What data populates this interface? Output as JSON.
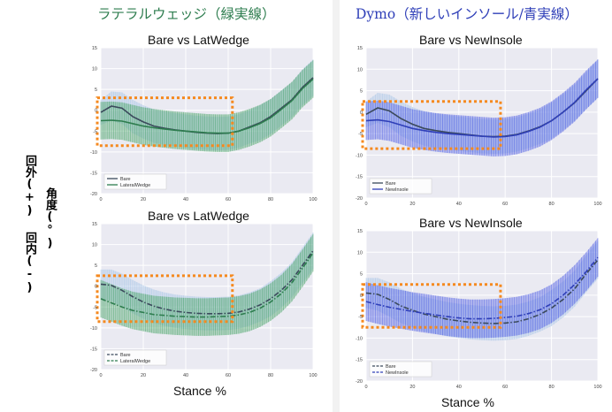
{
  "colors": {
    "green": "#2e7d4f",
    "blue": "#2f3fb8",
    "bare": "#3b4a5c",
    "box": "#f5891f",
    "green_band": "#4aa66a",
    "blue_band": "#4f5ee6",
    "bare_band": "#a9c6e8"
  },
  "left_title": "ラテラルウェッジ（緑実線）",
  "right_title": "Dymo（新しいインソール/青実線）",
  "y_axis_labels": {
    "outward": "回外(+)",
    "angle": "角度(°)",
    "inward": "回内(-)"
  },
  "stance_label": "Stance %",
  "chart_data": [
    {
      "type": "line",
      "title": "Bare vs LatWedge",
      "xlim": [
        0,
        100
      ],
      "ylim": [
        -20,
        15
      ],
      "grid": true,
      "legend": "bottom-left",
      "x_ticks": [
        0,
        20,
        40,
        60,
        80,
        100
      ],
      "y_ticks": [
        -20,
        -15,
        -10,
        -5,
        0,
        5,
        10,
        15
      ],
      "x": [
        0,
        5,
        10,
        15,
        20,
        25,
        30,
        35,
        40,
        45,
        50,
        55,
        60,
        65,
        70,
        75,
        80,
        85,
        90,
        95,
        100
      ],
      "series": [
        {
          "name": "Bare",
          "style": "solid",
          "color": "#3b4a5c",
          "band_color": "#a9c6e8",
          "values": [
            -0.5,
            1.0,
            0.5,
            -1.5,
            -2.8,
            -3.8,
            -4.3,
            -4.7,
            -5.0,
            -5.3,
            -5.5,
            -5.6,
            -5.5,
            -5.0,
            -4.0,
            -3.0,
            -1.5,
            0.5,
            2.5,
            5.5,
            7.8
          ],
          "band": [
            3,
            3.5,
            3.8,
            4,
            4,
            4,
            4,
            4,
            4,
            4,
            4,
            4,
            4,
            4,
            4,
            4.2,
            4.2,
            4.2,
            4.2,
            4.3,
            4.4
          ]
        },
        {
          "name": "LateralWedge",
          "style": "solid",
          "color": "#2e7d4f",
          "band_color": "#4aa66a",
          "values": [
            -2.5,
            -2.4,
            -2.6,
            -3.2,
            -3.8,
            -4.2,
            -4.5,
            -4.8,
            -5.0,
            -5.2,
            -5.4,
            -5.5,
            -5.5,
            -5.0,
            -4.2,
            -3.2,
            -1.8,
            0.2,
            2.3,
            5.2,
            7.5
          ],
          "band": [
            4.5,
            4.5,
            4.5,
            4.5,
            4.5,
            4.5,
            4.5,
            4.5,
            4.5,
            4.5,
            4.5,
            4.5,
            4.5,
            4.5,
            4.5,
            4.5,
            4.5,
            4.5,
            4.5,
            4.5,
            4.5
          ]
        }
      ]
    },
    {
      "type": "line",
      "title": "Bare vs LatWedge",
      "xlim": [
        0,
        100
      ],
      "ylim": [
        -20,
        15
      ],
      "grid": true,
      "legend": "bottom-left",
      "x_ticks": [
        0,
        20,
        40,
        60,
        80,
        100
      ],
      "y_ticks": [
        -20,
        -15,
        -10,
        -5,
        0,
        5,
        10,
        15
      ],
      "x": [
        0,
        5,
        10,
        15,
        20,
        25,
        30,
        35,
        40,
        45,
        50,
        55,
        60,
        65,
        70,
        75,
        80,
        85,
        90,
        95,
        100
      ],
      "series": [
        {
          "name": "Bare",
          "style": "dashed",
          "color": "#3b4a5c",
          "band_color": "#a9c6e8",
          "values": [
            0.5,
            0.2,
            -1.0,
            -2.5,
            -3.8,
            -4.8,
            -5.5,
            -6.0,
            -6.3,
            -6.5,
            -6.6,
            -6.6,
            -6.5,
            -6.2,
            -5.5,
            -4.5,
            -3.0,
            -1.0,
            1.5,
            5.0,
            8.5
          ],
          "band": [
            3.5,
            3.8,
            4,
            4,
            4,
            4,
            4,
            4,
            4,
            4,
            4,
            4,
            4,
            4,
            4,
            4,
            4.2,
            4.2,
            4.2,
            4.3,
            4.4
          ]
        },
        {
          "name": "LateralWedge",
          "style": "dashed",
          "color": "#2e7d4f",
          "band_color": "#4aa66a",
          "values": [
            -3.0,
            -4.0,
            -5.0,
            -5.8,
            -6.3,
            -6.8,
            -7.0,
            -7.2,
            -7.3,
            -7.4,
            -7.4,
            -7.3,
            -7.2,
            -6.9,
            -6.3,
            -5.3,
            -3.8,
            -1.8,
            0.8,
            4.3,
            8.0
          ],
          "band": [
            4.5,
            4.5,
            4.5,
            4.5,
            4.5,
            4.5,
            4.5,
            4.5,
            4.5,
            4.5,
            4.5,
            4.5,
            4.5,
            4.5,
            4.5,
            4.5,
            4.5,
            4.5,
            4.5,
            4.5,
            4.5
          ]
        }
      ]
    },
    {
      "type": "line",
      "title": "Bare vs NewInsole",
      "xlim": [
        0,
        100
      ],
      "ylim": [
        -20,
        15
      ],
      "grid": true,
      "legend": "bottom-left",
      "x_ticks": [
        0,
        20,
        40,
        60,
        80,
        100
      ],
      "y_ticks": [
        -20,
        -15,
        -10,
        -5,
        0,
        5,
        10,
        15
      ],
      "x": [
        0,
        5,
        10,
        15,
        20,
        25,
        30,
        35,
        40,
        45,
        50,
        55,
        60,
        65,
        70,
        75,
        80,
        85,
        90,
        95,
        100
      ],
      "series": [
        {
          "name": "Bare",
          "style": "solid",
          "color": "#3b4a5c",
          "band_color": "#a9c6e8",
          "values": [
            -0.5,
            1.0,
            0.3,
            -1.5,
            -2.8,
            -3.8,
            -4.3,
            -4.7,
            -5.0,
            -5.3,
            -5.6,
            -5.7,
            -5.6,
            -5.2,
            -4.4,
            -3.4,
            -2.0,
            0.0,
            2.2,
            5.0,
            7.8
          ],
          "band": [
            3,
            3.5,
            3.8,
            4,
            4,
            4,
            4,
            4,
            4,
            4,
            4,
            4,
            4,
            4,
            4,
            4,
            4.2,
            4.2,
            4.2,
            4.3,
            4.4
          ]
        },
        {
          "name": "NewInsole",
          "style": "solid",
          "color": "#2f3fb8",
          "band_color": "#4f5ee6",
          "values": [
            -2.0,
            -1.8,
            -2.2,
            -3.0,
            -3.8,
            -4.3,
            -4.7,
            -5.0,
            -5.2,
            -5.4,
            -5.6,
            -5.8,
            -5.7,
            -5.3,
            -4.5,
            -3.5,
            -2.0,
            0.0,
            2.3,
            5.2,
            7.8
          ],
          "band": [
            4.5,
            4.5,
            4.5,
            4.5,
            4.5,
            4.5,
            4.5,
            4.5,
            4.5,
            4.5,
            4.5,
            4.5,
            4.5,
            4.5,
            4.5,
            4.5,
            4.5,
            4.5,
            4.5,
            4.5,
            4.5
          ]
        }
      ]
    },
    {
      "type": "line",
      "title": "Bare vs NewInsole",
      "xlim": [
        0,
        100
      ],
      "ylim": [
        -20,
        15
      ],
      "grid": true,
      "legend": "bottom-left",
      "x_ticks": [
        0,
        20,
        40,
        60,
        80,
        100
      ],
      "y_ticks": [
        -20,
        -15,
        -10,
        -5,
        0,
        5,
        10,
        15
      ],
      "x": [
        0,
        5,
        10,
        15,
        20,
        25,
        30,
        35,
        40,
        45,
        50,
        55,
        60,
        65,
        70,
        75,
        80,
        85,
        90,
        95,
        100
      ],
      "series": [
        {
          "name": "Bare",
          "style": "dashed",
          "color": "#3b4a5c",
          "band_color": "#a9c6e8",
          "values": [
            0.5,
            0.2,
            -1.0,
            -2.5,
            -3.5,
            -4.4,
            -5.0,
            -5.6,
            -6.0,
            -6.3,
            -6.5,
            -6.6,
            -6.5,
            -6.2,
            -5.5,
            -4.5,
            -3.0,
            -1.0,
            1.5,
            5.0,
            8.2
          ],
          "band": [
            3.5,
            3.8,
            4,
            4,
            4,
            4,
            4,
            4,
            4,
            4,
            4,
            4,
            4,
            4,
            4,
            4,
            4.2,
            4.2,
            4.2,
            4.3,
            4.4
          ]
        },
        {
          "name": "NewInsole",
          "style": "dashed",
          "color": "#2f3fb8",
          "band_color": "#4f5ee6",
          "values": [
            -1.5,
            -2.2,
            -2.8,
            -3.3,
            -3.8,
            -4.2,
            -4.6,
            -5.0,
            -5.3,
            -5.5,
            -5.5,
            -5.4,
            -5.2,
            -4.9,
            -4.3,
            -3.4,
            -2.0,
            0.0,
            2.5,
            5.5,
            8.8
          ],
          "band": [
            4.5,
            4.5,
            4.5,
            4.5,
            4.5,
            4.5,
            4.5,
            4.5,
            4.5,
            4.5,
            4.5,
            4.5,
            4.5,
            4.5,
            4.5,
            4.5,
            4.5,
            4.5,
            4.5,
            4.5,
            4.5
          ]
        }
      ]
    }
  ]
}
